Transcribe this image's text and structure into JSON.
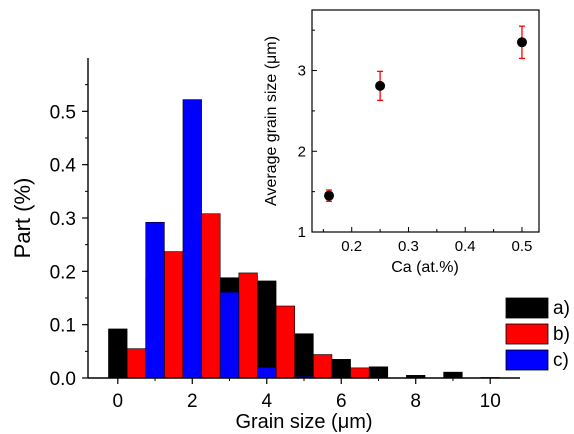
{
  "chart_data": [
    {
      "type": "bar",
      "xlabel": "Grain size (μm)",
      "ylabel": "Part (%)",
      "xlim": [
        -0.8,
        10.8
      ],
      "ylim": [
        0,
        0.6
      ],
      "xticks": [
        "0",
        "2",
        "4",
        "6",
        "8",
        "10"
      ],
      "yticks": [
        "0.0",
        "0.1",
        "0.2",
        "0.3",
        "0.4",
        "0.5"
      ],
      "legend_position": "lower-right",
      "series": [
        {
          "name": "a)",
          "color": "#000000",
          "bins": [
            0,
            1,
            2,
            3,
            4,
            5,
            6,
            7,
            8,
            9,
            10
          ],
          "values": [
            0.092,
            0.185,
            0.191,
            0.188,
            0.182,
            0.083,
            0.035,
            0.021,
            0.005,
            0.011,
            0.001
          ]
        },
        {
          "name": "b)",
          "color": "#ff0000",
          "bins": [
            0.5,
            1.5,
            2.5,
            3.5,
            4.5,
            5.5,
            6.5
          ],
          "values": [
            0.055,
            0.237,
            0.308,
            0.197,
            0.135,
            0.044,
            0.019
          ]
        },
        {
          "name": "c)",
          "color": "#0000ff",
          "bins": [
            1,
            2,
            3,
            4,
            5
          ],
          "values": [
            0.292,
            0.522,
            0.161,
            0.02,
            0.003
          ]
        }
      ]
    },
    {
      "type": "scatter",
      "xlabel": "Ca (at.%)",
      "ylabel": "Average grain size (μm)",
      "xlim": [
        0.13,
        0.53
      ],
      "ylim": [
        1,
        3.75
      ],
      "xticks": [
        "0.2",
        "0.3",
        "0.4",
        "0.5"
      ],
      "yticks": [
        "1",
        "2",
        "3"
      ],
      "point_color": "#000000",
      "errorbar_color": "#ff0000",
      "points": [
        {
          "x": 0.16,
          "y": 1.45,
          "err": 0.07
        },
        {
          "x": 0.25,
          "y": 2.81,
          "err": 0.18
        },
        {
          "x": 0.5,
          "y": 3.35,
          "err": 0.2
        }
      ]
    }
  ]
}
